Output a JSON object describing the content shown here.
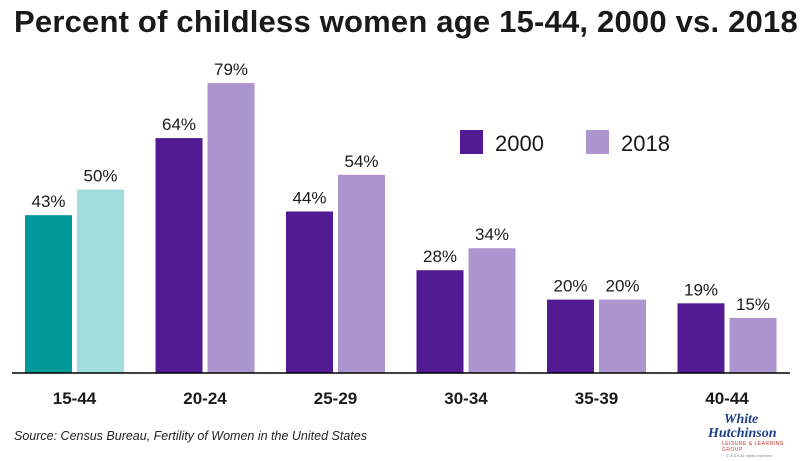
{
  "chart_data": {
    "type": "bar",
    "title": "Percent of childless women age 15-44, 2000 vs. 2018",
    "categories": [
      "15-44",
      "20-24",
      "25-29",
      "30-34",
      "35-39",
      "40-44"
    ],
    "series": [
      {
        "name": "2000",
        "values": [
          43,
          64,
          44,
          28,
          20,
          19
        ],
        "color": "#531b93"
      },
      {
        "name": "2018",
        "values": [
          50,
          79,
          54,
          34,
          20,
          15
        ],
        "color": "#ad95cf"
      }
    ],
    "data_labels": [
      [
        "43%",
        "64%",
        "44%",
        "28%",
        "20%",
        "19%"
      ],
      [
        "50%",
        "79%",
        "54%",
        "34%",
        "20%",
        "15%"
      ]
    ],
    "highlight": {
      "category": "15-44",
      "colors": [
        "#00999a",
        "#a0dede"
      ]
    },
    "ylim": [
      0,
      100
    ],
    "xlabel": "",
    "ylabel": "",
    "grid": false,
    "legend": "top-right"
  },
  "source": "Source: Census Bureau, Fertility of Women in the United States",
  "logo": {
    "line1": "White",
    "line2": "Hutchinson",
    "line3": "LEISURE & LEARNING GROUP",
    "line4": "© 2019 All rights reserved"
  }
}
